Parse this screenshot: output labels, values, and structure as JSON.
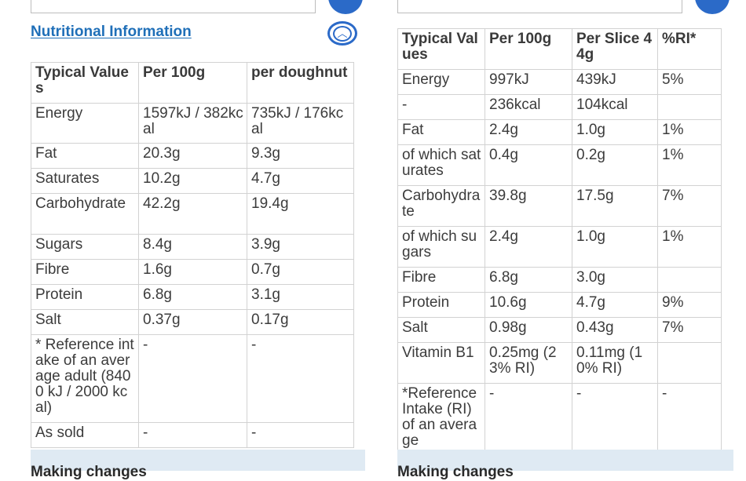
{
  "left_panel": {
    "title": "Nutritional Information",
    "headers": [
      "Typical Values",
      "Per 100g",
      "per doughnut"
    ],
    "rows": [
      [
        "Energy",
        "1597kJ / 382kcal",
        "735kJ / 176kcal"
      ],
      [
        "Fat",
        "20.3g",
        "9.3g"
      ],
      [
        "Saturates",
        "10.2g",
        "4.7g"
      ],
      [
        "Carbohydrate",
        "42.2g",
        "19.4g"
      ],
      [
        "Sugars",
        "8.4g",
        "3.9g"
      ],
      [
        "Fibre",
        "1.6g",
        "0.7g"
      ],
      [
        "Protein",
        "6.8g",
        "3.1g"
      ],
      [
        "Salt",
        "0.37g",
        "0.17g"
      ],
      [
        "* Reference intake of an average adult (8400 kJ / 2000 kcal)",
        "-",
        "-"
      ],
      [
        "As sold",
        "-",
        "-"
      ]
    ],
    "bottom_text": "Making changes"
  },
  "right_panel": {
    "headers": [
      "Typical Values",
      "Per 100g",
      "Per Slice 44g",
      "%RI*"
    ],
    "rows": [
      [
        "Energy",
        "997kJ",
        "439kJ",
        "5%"
      ],
      [
        "-",
        "236kcal",
        "104kcal",
        ""
      ],
      [
        "Fat",
        "2.4g",
        "1.0g",
        "1%"
      ],
      [
        "of which saturates",
        "0.4g",
        "0.2g",
        "1%"
      ],
      [
        "Carbohydrate",
        "39.8g",
        "17.5g",
        "7%"
      ],
      [
        "of which sugars",
        "2.4g",
        "1.0g",
        "1%"
      ],
      [
        "Fibre",
        "6.8g",
        "3.0g",
        ""
      ],
      [
        "Protein",
        "10.6g",
        "4.7g",
        "9%"
      ],
      [
        "Salt",
        "0.98g",
        "0.43g",
        "7%"
      ],
      [
        "Vitamin B1",
        "0.25mg (23% RI)",
        "0.11mg (10% RI)",
        ""
      ],
      [
        "*Reference Intake (RI) of an average",
        "-",
        "-",
        "-"
      ]
    ],
    "bottom_text": "Making changes"
  },
  "icons": {
    "collapse": "chevron-up-icon"
  }
}
